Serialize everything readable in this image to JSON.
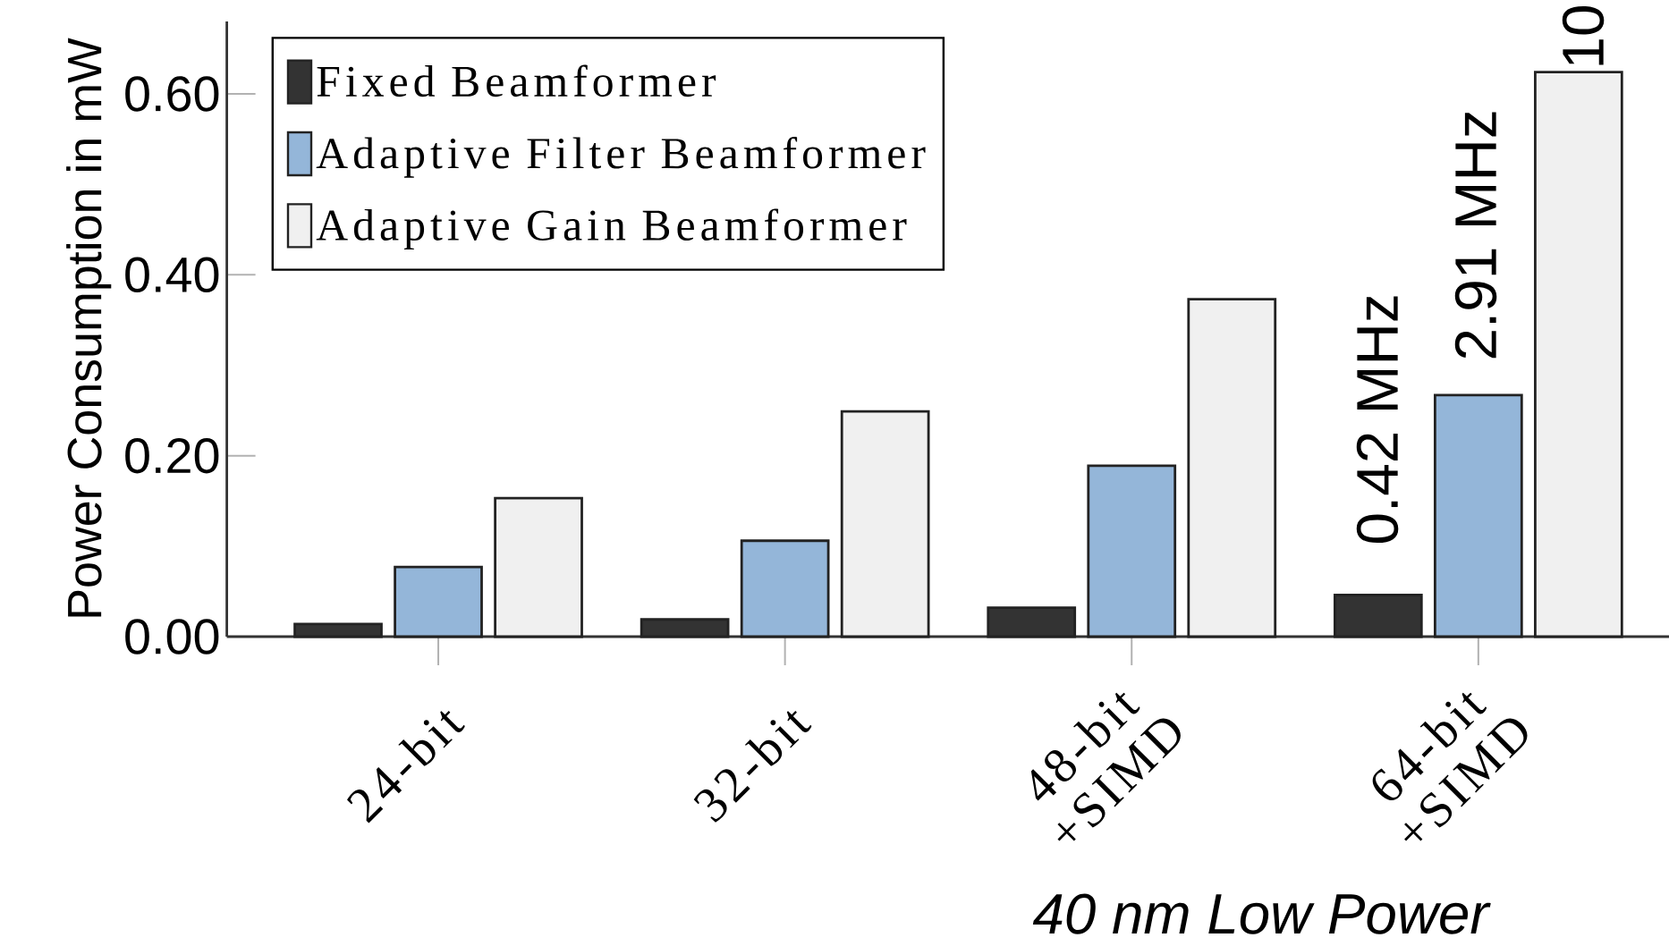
{
  "chart_data": {
    "type": "bar",
    "ylabel": "Power Consumption in mW",
    "categories": [
      "24-bit",
      "32-bit",
      "48-bit +SIMD",
      "64-bit +SIMD"
    ],
    "series": [
      {
        "name": "Fixed Beamformer",
        "color": "#333333",
        "values": [
          0.014,
          0.019,
          0.032,
          0.046
        ]
      },
      {
        "name": "Adaptive Filter Beamformer",
        "color": "#94b6d9",
        "values": [
          0.077,
          0.106,
          0.189,
          0.267
        ]
      },
      {
        "name": "Adaptive Gain Beamformer",
        "color": "#f0f0f0",
        "values": [
          0.153,
          0.249,
          0.373,
          0.624
        ]
      }
    ],
    "ylim": [
      0,
      0.68
    ],
    "yticks": [
      {
        "value": 0,
        "label": "0.00"
      },
      {
        "value": 0.2,
        "label": "0.20"
      },
      {
        "value": 0.4,
        "label": "0.40"
      },
      {
        "value": 0.6,
        "label": "0.60"
      }
    ],
    "legend": "top left",
    "annotations": [
      "0.42 MHz",
      "2.91 MHz",
      "10",
      "40 nm Low Power"
    ]
  }
}
